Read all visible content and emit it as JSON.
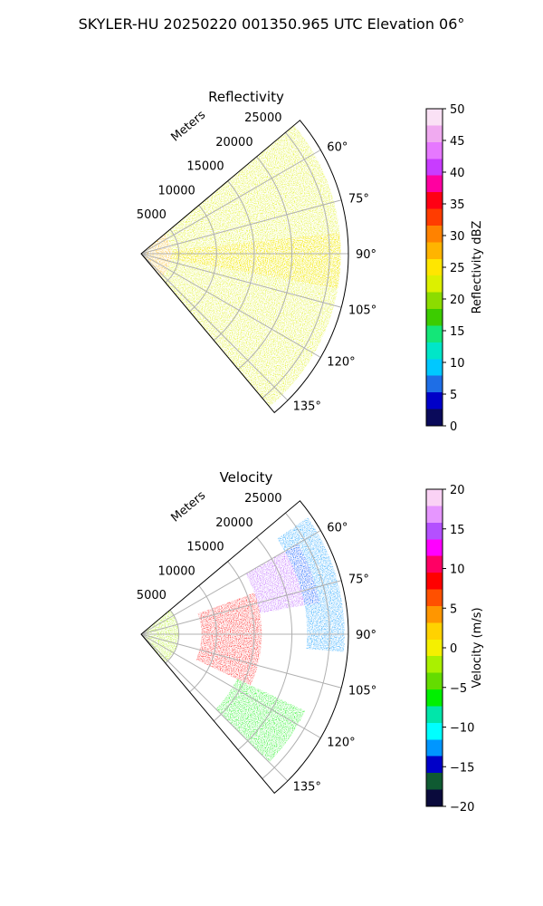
{
  "figure": {
    "suptitle": "SKYLER-HU  20250220  001350.965 UTC Elevation 06°"
  },
  "panels": [
    {
      "id": "reflectivity",
      "title": "Reflectivity",
      "radial_label": "Meters",
      "range_ticks": [
        5000,
        10000,
        15000,
        20000,
        25000
      ],
      "range_tick_labels": [
        "5000",
        "10000",
        "15000",
        "20000",
        "25000"
      ],
      "azimuth_ticks": [
        60,
        75,
        90,
        105,
        120,
        135
      ],
      "azimuth_tick_labels": [
        "60°",
        "75°",
        "90°",
        "105°",
        "120°",
        "135°"
      ],
      "colorbar": {
        "label": "Reflectivity dBZ",
        "vmin": 0,
        "vmax": 50,
        "ticks": [
          0,
          5,
          10,
          15,
          20,
          25,
          30,
          35,
          40,
          45,
          50
        ],
        "tick_labels": [
          "0",
          "5",
          "10",
          "15",
          "20",
          "25",
          "30",
          "35",
          "40",
          "45",
          "50"
        ]
      }
    },
    {
      "id": "velocity",
      "title": "Velocity",
      "radial_label": "Meters",
      "range_ticks": [
        5000,
        10000,
        15000,
        20000,
        25000
      ],
      "range_tick_labels": [
        "5000",
        "10000",
        "15000",
        "20000",
        "25000"
      ],
      "azimuth_ticks": [
        60,
        75,
        90,
        105,
        120,
        135
      ],
      "azimuth_tick_labels": [
        "60°",
        "75°",
        "90°",
        "105°",
        "120°",
        "135°"
      ],
      "colorbar": {
        "label": "Velocity (m/s)",
        "vmin": -20,
        "vmax": 20,
        "ticks": [
          -20,
          -15,
          -10,
          -5,
          0,
          5,
          10,
          15,
          20
        ],
        "tick_labels": [
          "−20",
          "−15",
          "−10",
          "−5",
          "0",
          "5",
          "10",
          "15",
          "20"
        ]
      }
    }
  ],
  "chart_data": [
    {
      "type": "heatmap",
      "projection": "polar-sector",
      "title": "Reflectivity",
      "azimuth_range_deg": [
        50,
        140
      ],
      "range_max_m": 27500,
      "data_extent_m": 26500,
      "grid": true,
      "colormap_stops": [
        "#0a0a5a",
        "#0000c8",
        "#1e6ee6",
        "#00c8ff",
        "#00e6c8",
        "#14e678",
        "#3ccc00",
        "#8cdc00",
        "#dcf000",
        "#ffe600",
        "#ffb400",
        "#ff8200",
        "#ff3c00",
        "#ff0014",
        "#ff00a0",
        "#c83cff",
        "#e678ff",
        "#f0aaf0",
        "#fae1f5"
      ],
      "field_summary": [
        {
          "range_m": [
            0,
            4000
          ],
          "azimuth_deg": [
            50,
            140
          ],
          "value_dbz": 27
        },
        {
          "range_m": [
            4000,
            26500
          ],
          "azimuth_deg": [
            50,
            140
          ],
          "value_dbz": 22
        },
        {
          "range_m": [
            4000,
            26500
          ],
          "azimuth_deg": [
            84,
            100
          ],
          "value_dbz": 24
        }
      ]
    },
    {
      "type": "heatmap",
      "projection": "polar-sector",
      "title": "Velocity",
      "azimuth_range_deg": [
        50,
        140
      ],
      "range_max_m": 27500,
      "data_extent_m": 27000,
      "grid": true,
      "colormap_stops": [
        "#0a0a3c",
        "#0f5a32",
        "#0000c8",
        "#0096ff",
        "#00ffff",
        "#00e6aa",
        "#00f000",
        "#64dc00",
        "#aaf000",
        "#f5f000",
        "#ffd200",
        "#ff9600",
        "#ff5000",
        "#ff0000",
        "#ff0064",
        "#ff00ff",
        "#b450ff",
        "#e696ff",
        "#fad2f5"
      ],
      "field_summary": [
        {
          "range_m": [
            0,
            5000
          ],
          "azimuth_deg": [
            50,
            140
          ],
          "velocity_ms": -3
        },
        {
          "range_m": [
            8000,
            16000
          ],
          "azimuth_deg": [
            70,
            115
          ],
          "velocity_ms": 9
        },
        {
          "range_m": [
            16000,
            24000
          ],
          "azimuth_deg": [
            60,
            80
          ],
          "velocity_ms": 14
        },
        {
          "range_m": [
            22000,
            27000
          ],
          "azimuth_deg": [
            55,
            95
          ],
          "velocity_ms": -12
        },
        {
          "range_m": [
            14000,
            24000
          ],
          "azimuth_deg": [
            115,
            135
          ],
          "velocity_ms": -6
        }
      ]
    }
  ]
}
